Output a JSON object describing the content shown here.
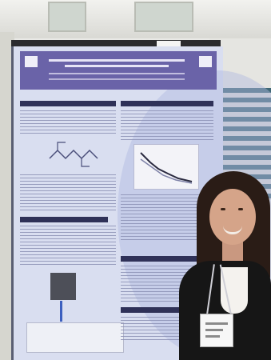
{
  "scene": {
    "description_objects": [
      "poster",
      "presenter",
      "name-badge",
      "window-blinds"
    ]
  }
}
